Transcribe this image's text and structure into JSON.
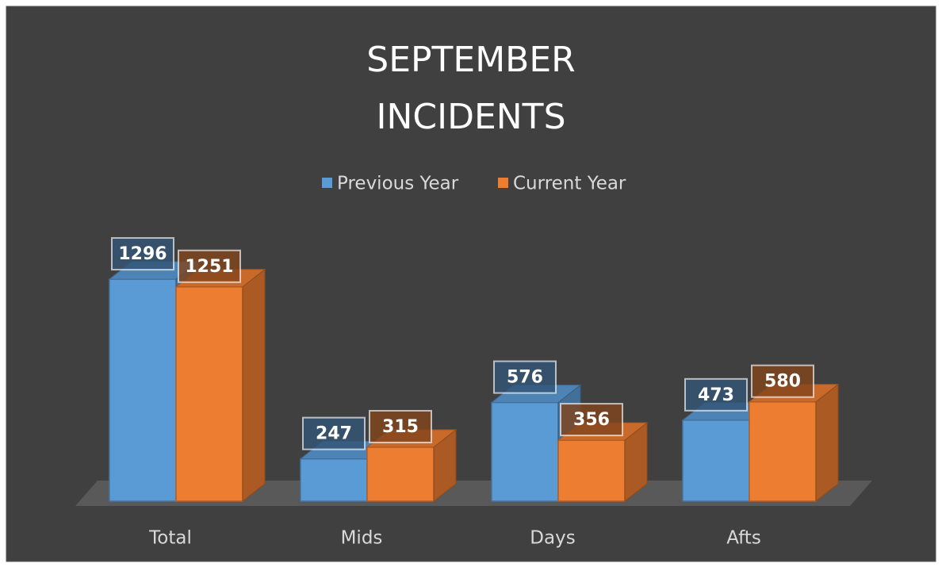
{
  "chart_data": {
    "type": "bar3d",
    "title": "SEPTEMBER INCIDENTS",
    "categories": [
      "Total",
      "Mids",
      "Days",
      "Afts"
    ],
    "series": [
      {
        "name": "Previous Year",
        "color": "#5b9bd5",
        "values": [
          1296,
          247,
          576,
          473
        ]
      },
      {
        "name": "Current Year",
        "color": "#ed7d31",
        "values": [
          1251,
          315,
          356,
          580
        ]
      }
    ],
    "ylim": [
      0,
      1400
    ],
    "legend": "top"
  }
}
